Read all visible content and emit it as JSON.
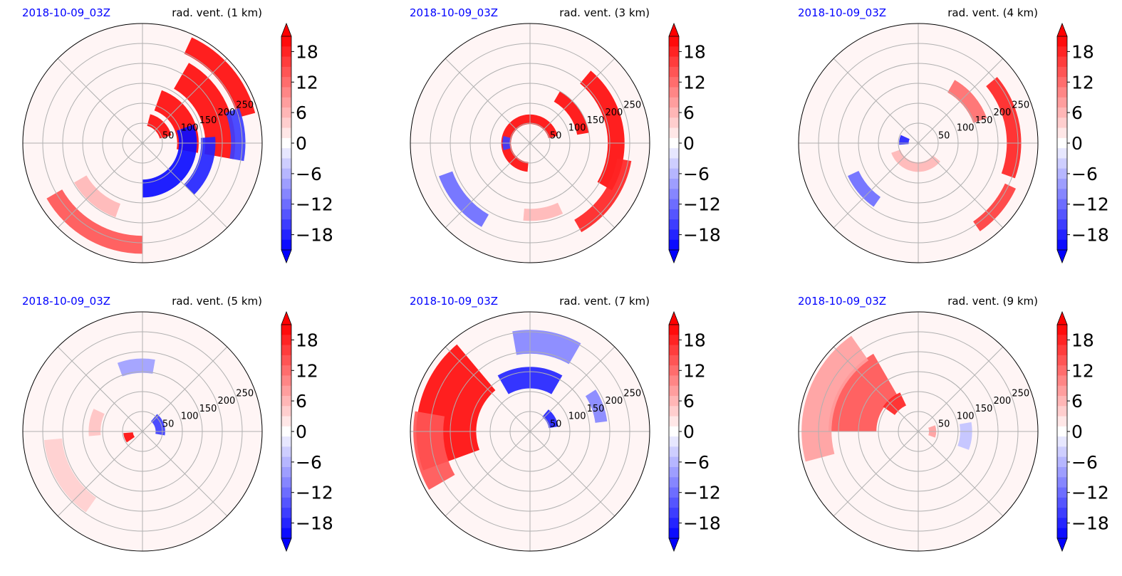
{
  "figure": {
    "date_color": "#0000ff",
    "colormap": {
      "low": "#0000ff",
      "mid": "#ffffff",
      "high": "#ff0000"
    }
  },
  "chart_data": [
    {
      "type": "heatmap",
      "date_label": "2018-10-09_03Z",
      "title": "rad. vent. (1 km)",
      "radial_tick_labels": [
        "50",
        "100",
        "150",
        "200",
        "250"
      ],
      "colorbar": {
        "ticks": [
          "18",
          "12",
          "6",
          "0",
          "−6",
          "−12",
          "−18"
        ],
        "range": [
          -21,
          21
        ],
        "extend": "both"
      },
      "features": [
        {
          "kind": "positive",
          "r": 0.2,
          "theta": 45,
          "width": 60,
          "thickness": 0.1,
          "value": 20
        },
        {
          "kind": "positive",
          "r": 0.38,
          "theta": 30,
          "width": 80,
          "thickness": 0.18,
          "value": 20
        },
        {
          "kind": "positive",
          "r": 0.65,
          "theta": 25,
          "width": 70,
          "thickness": 0.25,
          "value": 20
        },
        {
          "kind": "positive",
          "r": 0.9,
          "theta": 40,
          "width": 50,
          "thickness": 0.15,
          "value": 20
        },
        {
          "kind": "negative",
          "r": 0.38,
          "theta": -35,
          "width": 110,
          "thickness": 0.15,
          "value": -20
        },
        {
          "kind": "negative",
          "r": 0.55,
          "theta": -20,
          "width": 50,
          "thickness": 0.12,
          "value": -18
        },
        {
          "kind": "negative",
          "r": 0.8,
          "theta": 5,
          "width": 30,
          "thickness": 0.12,
          "value": -16
        },
        {
          "kind": "positive",
          "r": 0.85,
          "theta": -120,
          "width": 60,
          "thickness": 0.15,
          "value": 14
        },
        {
          "kind": "positive",
          "r": 0.6,
          "theta": -130,
          "width": 40,
          "thickness": 0.12,
          "value": 6
        }
      ]
    },
    {
      "type": "heatmap",
      "date_label": "2018-10-09_03Z",
      "title": "rad. vent. (3 km)",
      "radial_tick_labels": [
        "50",
        "100",
        "150",
        "200",
        "250"
      ],
      "colorbar": {
        "ticks": [
          "18",
          "12",
          "6",
          "0",
          "−6",
          "−12",
          "−18"
        ],
        "range": [
          -21,
          21
        ],
        "extend": "both"
      },
      "features": [
        {
          "kind": "positive",
          "r": 0.2,
          "theta": 140,
          "width": 250,
          "thickness": 0.08,
          "value": 20
        },
        {
          "kind": "positive",
          "r": 0.45,
          "theta": 35,
          "width": 50,
          "thickness": 0.1,
          "value": 20
        },
        {
          "kind": "positive",
          "r": 0.72,
          "theta": 10,
          "width": 80,
          "thickness": 0.14,
          "value": 20
        },
        {
          "kind": "positive",
          "r": 0.8,
          "theta": -35,
          "width": 50,
          "thickness": 0.12,
          "value": 18
        },
        {
          "kind": "negative",
          "r": 0.2,
          "theta": 180,
          "width": 30,
          "thickness": 0.06,
          "value": -16
        },
        {
          "kind": "negative",
          "r": 0.75,
          "theta": -140,
          "width": 40,
          "thickness": 0.12,
          "value": -12
        },
        {
          "kind": "positive",
          "r": 0.6,
          "theta": -80,
          "width": 30,
          "thickness": 0.1,
          "value": 6
        }
      ]
    },
    {
      "type": "heatmap",
      "date_label": "2018-10-09_03Z",
      "title": "rad. vent. (4 km)",
      "radial_tick_labels": [
        "50",
        "100",
        "150",
        "200",
        "250"
      ],
      "colorbar": {
        "ticks": [
          "18",
          "12",
          "6",
          "0",
          "−6",
          "−12",
          "−18"
        ],
        "range": [
          -21,
          21
        ],
        "extend": "both"
      },
      "features": [
        {
          "kind": "positive",
          "r": 0.55,
          "theta": 40,
          "width": 40,
          "thickness": 0.12,
          "value": 12
        },
        {
          "kind": "positive",
          "r": 0.8,
          "theta": 10,
          "width": 60,
          "thickness": 0.12,
          "value": 18
        },
        {
          "kind": "positive",
          "r": 0.85,
          "theta": -40,
          "width": 30,
          "thickness": 0.1,
          "value": 16
        },
        {
          "kind": "negative",
          "r": 0.12,
          "theta": 170,
          "width": 30,
          "thickness": 0.08,
          "value": -18
        },
        {
          "kind": "negative",
          "r": 0.6,
          "theta": -140,
          "width": 30,
          "thickness": 0.1,
          "value": -12
        },
        {
          "kind": "positive",
          "r": 0.2,
          "theta": -100,
          "width": 120,
          "thickness": 0.08,
          "value": 6
        }
      ]
    },
    {
      "type": "heatmap",
      "date_label": "2018-10-09_03Z",
      "title": "rad. vent. (5 km)",
      "radial_tick_labels": [
        "50",
        "100",
        "150",
        "200",
        "250"
      ],
      "colorbar": {
        "ticks": [
          "18",
          "12",
          "6",
          "0",
          "−6",
          "−12",
          "−18"
        ],
        "range": [
          -21,
          21
        ],
        "extend": "both"
      },
      "features": [
        {
          "kind": "positive",
          "r": 0.12,
          "theta": 200,
          "width": 30,
          "thickness": 0.08,
          "value": 20
        },
        {
          "kind": "negative",
          "r": 0.15,
          "theta": 20,
          "width": 60,
          "thickness": 0.08,
          "value": -16
        },
        {
          "kind": "negative",
          "r": 0.55,
          "theta": 95,
          "width": 30,
          "thickness": 0.12,
          "value": -8
        },
        {
          "kind": "positive",
          "r": 0.75,
          "theta": -150,
          "width": 50,
          "thickness": 0.15,
          "value": 4
        },
        {
          "kind": "positive",
          "r": 0.4,
          "theta": 170,
          "width": 30,
          "thickness": 0.1,
          "value": 5
        }
      ]
    },
    {
      "type": "heatmap",
      "date_label": "2018-10-09_03Z",
      "title": "rad. vent. (7 km)",
      "radial_tick_labels": [
        "50",
        "100",
        "150",
        "200",
        "250"
      ],
      "colorbar": {
        "ticks": [
          "18",
          "12",
          "6",
          "0",
          "−6",
          "−12",
          "−18"
        ],
        "range": [
          -21,
          21
        ],
        "extend": "both"
      },
      "features": [
        {
          "kind": "positive",
          "r": 0.7,
          "theta": 165,
          "width": 70,
          "thickness": 0.5,
          "value": 20
        },
        {
          "kind": "positive",
          "r": 0.85,
          "theta": 190,
          "width": 40,
          "thickness": 0.25,
          "value": 14
        },
        {
          "kind": "negative",
          "r": 0.45,
          "theta": 90,
          "width": 60,
          "thickness": 0.18,
          "value": -18
        },
        {
          "kind": "negative",
          "r": 0.75,
          "theta": 80,
          "width": 40,
          "thickness": 0.2,
          "value": -10
        },
        {
          "kind": "negative",
          "r": 0.2,
          "theta": 30,
          "width": 40,
          "thickness": 0.08,
          "value": -18
        },
        {
          "kind": "negative",
          "r": 0.6,
          "theta": 20,
          "width": 25,
          "thickness": 0.1,
          "value": -10
        }
      ]
    },
    {
      "type": "heatmap",
      "date_label": "2018-10-09_03Z",
      "title": "rad. vent. (9 km)",
      "radial_tick_labels": [
        "50",
        "100",
        "150",
        "200",
        "250"
      ],
      "colorbar": {
        "ticks": [
          "18",
          "12",
          "6",
          "0",
          "−6",
          "−12",
          "−18"
        ],
        "range": [
          -21,
          21
        ],
        "extend": "both"
      },
      "features": [
        {
          "kind": "positive",
          "r": 0.55,
          "theta": 150,
          "width": 60,
          "thickness": 0.4,
          "value": 14
        },
        {
          "kind": "positive",
          "r": 0.85,
          "theta": 160,
          "width": 70,
          "thickness": 0.25,
          "value": 8
        },
        {
          "kind": "positive",
          "r": 0.3,
          "theta": 130,
          "width": 30,
          "thickness": 0.12,
          "value": 18
        },
        {
          "kind": "negative",
          "r": 0.4,
          "theta": -5,
          "width": 30,
          "thickness": 0.1,
          "value": -5
        },
        {
          "kind": "positive",
          "r": 0.12,
          "theta": 0,
          "width": 40,
          "thickness": 0.06,
          "value": 8
        }
      ]
    }
  ]
}
